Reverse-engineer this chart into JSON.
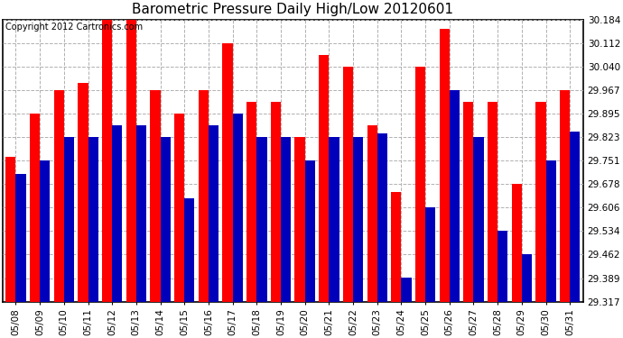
{
  "title": "Barometric Pressure Daily High/Low 20120601",
  "copyright": "Copyright 2012 Cartronics.com",
  "dates": [
    "05/08",
    "05/09",
    "05/10",
    "05/11",
    "05/12",
    "05/13",
    "05/14",
    "05/15",
    "05/16",
    "05/17",
    "05/18",
    "05/19",
    "05/20",
    "05/21",
    "05/22",
    "05/23",
    "05/24",
    "05/25",
    "05/26",
    "05/27",
    "05/28",
    "05/29",
    "05/30",
    "05/31"
  ],
  "highs": [
    29.762,
    29.895,
    29.967,
    29.99,
    30.184,
    30.184,
    29.967,
    29.895,
    29.967,
    30.112,
    29.93,
    29.93,
    29.823,
    30.075,
    30.04,
    29.86,
    29.655,
    30.04,
    30.155,
    29.93,
    29.93,
    29.678,
    29.93,
    29.967
  ],
  "lows": [
    29.71,
    29.75,
    29.823,
    29.823,
    29.86,
    29.86,
    29.823,
    29.634,
    29.86,
    29.895,
    29.823,
    29.823,
    29.751,
    29.823,
    29.823,
    29.835,
    29.39,
    29.606,
    29.967,
    29.823,
    29.534,
    29.462,
    29.751,
    29.84
  ],
  "ymin": 29.317,
  "ymax": 30.184,
  "yticks": [
    29.317,
    29.389,
    29.462,
    29.534,
    29.606,
    29.678,
    29.751,
    29.823,
    29.895,
    29.967,
    30.04,
    30.112,
    30.184
  ],
  "high_color": "#ff0000",
  "low_color": "#0000bb",
  "background_color": "#ffffff",
  "grid_color": "#b0b0b0",
  "title_fontsize": 11,
  "copyright_fontsize": 7,
  "bar_width": 0.42,
  "figwidth": 6.9,
  "figheight": 3.75,
  "dpi": 100
}
